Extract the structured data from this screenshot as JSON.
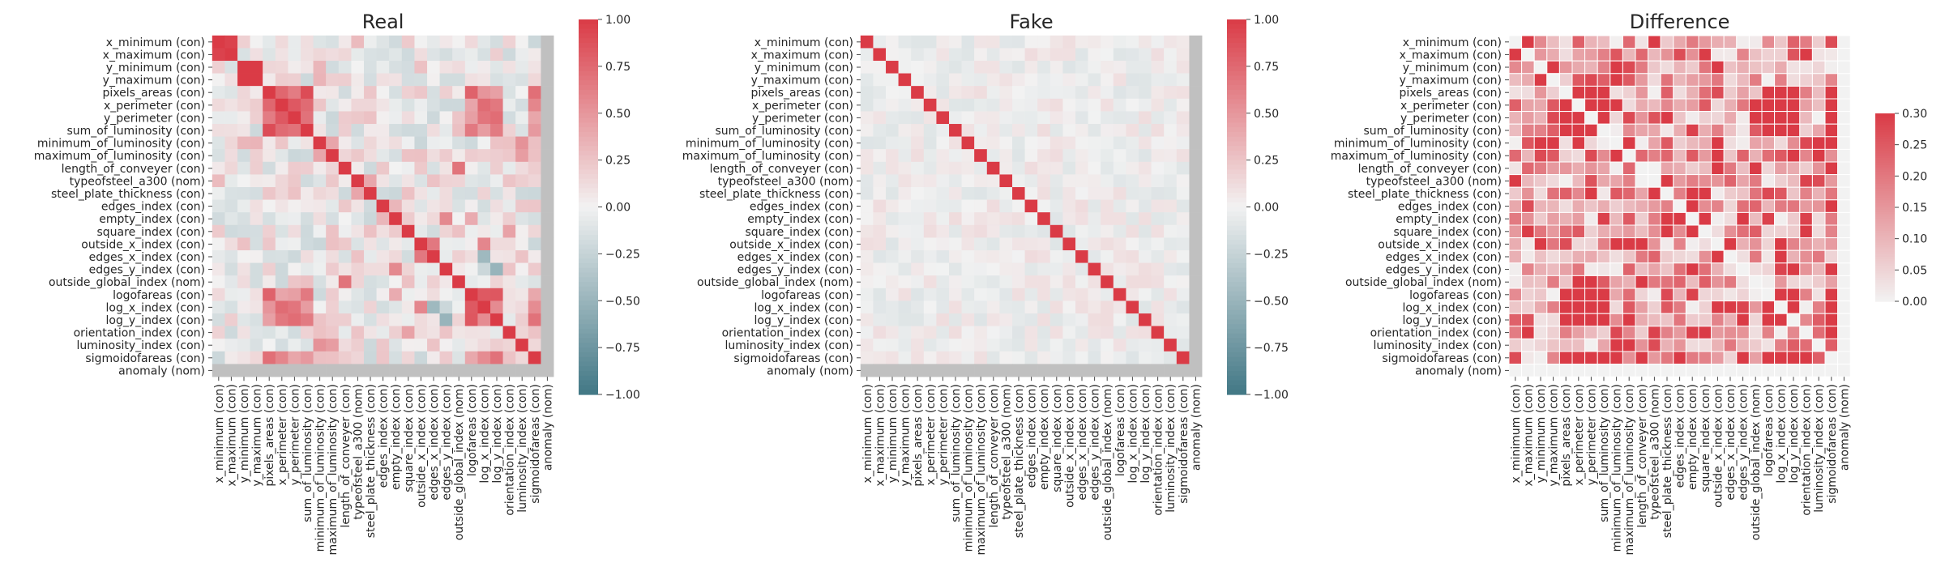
{
  "chart_data": [
    {
      "type": "heatmap",
      "title": "Real",
      "matrix_kind": "real",
      "vmin": -1,
      "vmax": 1,
      "colorbar_ticks": [
        "1.00",
        "0.75",
        "0.50",
        "0.25",
        "0.00",
        "−0.25",
        "−0.50",
        "−0.75",
        "−1.00"
      ],
      "colorbar_values": [
        1,
        0.75,
        0.5,
        0.25,
        0,
        -0.25,
        -0.5,
        -0.75,
        -1
      ]
    },
    {
      "type": "heatmap",
      "title": "Fake",
      "matrix_kind": "fake",
      "vmin": -1,
      "vmax": 1,
      "colorbar_ticks": [
        "1.00",
        "0.75",
        "0.50",
        "0.25",
        "0.00",
        "−0.25",
        "−0.50",
        "−0.75",
        "−1.00"
      ],
      "colorbar_values": [
        1,
        0.75,
        0.5,
        0.25,
        0,
        -0.25,
        -0.5,
        -0.75,
        -1
      ]
    },
    {
      "type": "heatmap",
      "title": "Difference",
      "matrix_kind": "difference",
      "vmin": 0,
      "vmax": 0.3,
      "colorbar_ticks": [
        "0.30",
        "0.25",
        "0.20",
        "0.15",
        "0.10",
        "0.05",
        "0.00"
      ],
      "colorbar_values": [
        0.3,
        0.25,
        0.2,
        0.15,
        0.1,
        0.05,
        0
      ]
    }
  ],
  "labels": [
    "x_minimum (con)",
    "x_maximum (con)",
    "y_minimum (con)",
    "y_maximum (con)",
    "pixels_areas (con)",
    "x_perimeter (con)",
    "y_perimeter (con)",
    "sum_of_luminosity (con)",
    "minimum_of_luminosity (con)",
    "maximum_of_luminosity (con)",
    "length_of_conveyer (con)",
    "typeofsteel_a300 (nom)",
    "steel_plate_thickness (con)",
    "edges_index (con)",
    "empty_index (con)",
    "square_index (con)",
    "outside_x_index (con)",
    "edges_x_index (con)",
    "edges_y_index (con)",
    "outside_global_index (nom)",
    "logofareas (con)",
    "log_x_index (con)",
    "log_y_index (con)",
    "orientation_index (con)",
    "luminosity_index (con)",
    "sigmoidofareas (con)",
    "anomaly (nom)"
  ],
  "colors": {
    "negative": "#417785",
    "neutral": "#f2f2f2",
    "positive": "#da3b46",
    "undefined": "#c0c0c0"
  }
}
